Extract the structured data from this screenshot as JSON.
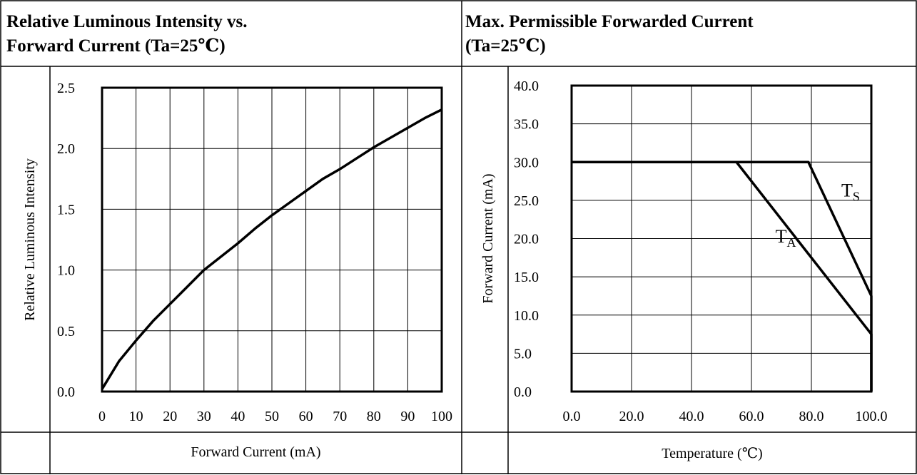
{
  "left_panel": {
    "header_line1": "Relative Luminous Intensity vs.",
    "header_line2": "Forward Current (Ta=25℃)",
    "xlabel": "Forward Current (mA)"
  },
  "right_panel": {
    "header_line1": "Max. Permissible Forwarded Current",
    "header_line2": "(Ta=25℃)",
    "xlabel": "Temperature (℃)"
  },
  "chart_data": [
    {
      "type": "line",
      "title": "Relative Luminous Intensity vs. Forward Current (Ta=25℃)",
      "xlabel": "Forward Current (mA)",
      "ylabel": "Relative Luminous Intensity",
      "xlim": [
        0,
        100
      ],
      "ylim": [
        0,
        2.5
      ],
      "xticks": [
        "0",
        "10",
        "20",
        "30",
        "40",
        "50",
        "60",
        "70",
        "80",
        "90",
        "100"
      ],
      "yticks": [
        "0.0",
        "0.5",
        "1.0",
        "1.5",
        "2.0",
        "2.5"
      ],
      "grid": true,
      "series": [
        {
          "x": [
            0,
            5,
            10,
            15,
            20,
            25,
            30,
            35,
            40,
            45,
            50,
            55,
            60,
            65,
            70,
            75,
            80,
            85,
            90,
            95,
            100
          ],
          "y": [
            0.02,
            0.25,
            0.42,
            0.58,
            0.72,
            0.86,
            1.0,
            1.11,
            1.22,
            1.34,
            1.45,
            1.55,
            1.65,
            1.75,
            1.83,
            1.92,
            2.01,
            2.09,
            2.17,
            2.25,
            2.32
          ]
        }
      ]
    },
    {
      "type": "line",
      "title": "Max. Permissible Forwarded Current (Ta=25℃)",
      "xlabel": "Temperature (℃)",
      "ylabel": "Forward Current (mA)",
      "xlim": [
        0,
        100
      ],
      "ylim": [
        0,
        40
      ],
      "xticks": [
        "0.0",
        "20.0",
        "40.0",
        "60.0",
        "80.0",
        "100.0"
      ],
      "yticks": [
        "0.0",
        "5.0",
        "10.0",
        "15.0",
        "20.0",
        "25.0",
        "30.0",
        "35.0",
        "40.0"
      ],
      "grid": true,
      "series": [
        {
          "name": "TA",
          "x": [
            0,
            55,
            100,
            100
          ],
          "y": [
            30,
            30,
            7.5,
            0
          ]
        },
        {
          "name": "TS",
          "x": [
            0,
            79,
            100,
            100
          ],
          "y": [
            30,
            30,
            12.5,
            0
          ]
        }
      ],
      "annotations": [
        {
          "base": "T",
          "sub": "S",
          "x": 90,
          "y": 25.5
        },
        {
          "base": "T",
          "sub": "A",
          "x": 68,
          "y": 19.5
        }
      ]
    }
  ]
}
